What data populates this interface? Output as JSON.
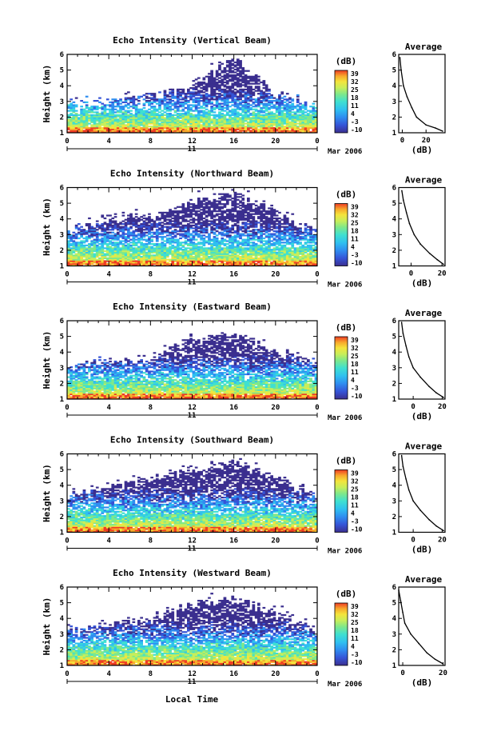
{
  "figure": {
    "panels": [
      {
        "title": "Echo Intensity (Vertical Beam)"
      },
      {
        "title": "Echo Intensity (Northward Beam)"
      },
      {
        "title": "Echo Intensity (Eastward Beam)"
      },
      {
        "title": "Echo Intensity (Southward Beam)"
      },
      {
        "title": "Echo Intensity (Westward Beam)"
      }
    ],
    "ylabel": "Height (km)",
    "colorbar_label": "(dB)",
    "colorbar_ticks": [
      "39",
      "32",
      "25",
      "18",
      "11",
      "4",
      "-3",
      "-10"
    ],
    "x_ticks": [
      "0",
      "4",
      "8",
      "12",
      "16",
      "20",
      "0"
    ],
    "day_label": "11",
    "date_label": "Mar 2006",
    "xlabel": "Local Time",
    "profile_title": "Average",
    "profile_xlabel": "(dB)",
    "y_ticks": [
      "1",
      "2",
      "3",
      "4",
      "5",
      "6"
    ],
    "colors": {
      "scale": [
        "#3b2f8f",
        "#3553d6",
        "#2f8ef0",
        "#2fc0f0",
        "#3fe0d0",
        "#7fe88a",
        "#c8ee5a",
        "#f4e43c",
        "#f8a82c",
        "#ee3c24"
      ]
    }
  },
  "chart_data": [
    {
      "type": "heatmap",
      "title": "Echo Intensity (Vertical Beam)",
      "xlabel": "",
      "ylabel": "Height (km)",
      "xlim": [
        0,
        24
      ],
      "ylim": [
        1,
        6
      ],
      "zlim": [
        -10,
        39
      ],
      "zlabel": "(dB)",
      "echo_top_km": [
        [
          0,
          2.7
        ],
        [
          4,
          2.9
        ],
        [
          8,
          3.3
        ],
        [
          12,
          3.8
        ],
        [
          16,
          5.8
        ],
        [
          20,
          3.3
        ],
        [
          24,
          2.6
        ]
      ]
    },
    {
      "type": "line",
      "title": "Average",
      "xlabel": "(dB)",
      "ylabel": "",
      "xlim": [
        -3,
        36
      ],
      "ylim": [
        1,
        6
      ],
      "x_ticks": [
        0,
        20
      ],
      "x": [
        34,
        28,
        20,
        12,
        8,
        4,
        1,
        -1,
        -2
      ],
      "y": [
        1.1,
        1.3,
        1.5,
        2.0,
        2.6,
        3.3,
        4.0,
        5.0,
        5.8
      ]
    },
    {
      "type": "heatmap",
      "title": "Echo Intensity (Northward Beam)",
      "xlabel": "",
      "ylabel": "Height (km)",
      "xlim": [
        0,
        24
      ],
      "ylim": [
        1,
        6
      ],
      "zlim": [
        -10,
        39
      ],
      "zlabel": "(dB)",
      "echo_top_km": [
        [
          0,
          3.2
        ],
        [
          4,
          4.0
        ],
        [
          8,
          4.2
        ],
        [
          12,
          5.0
        ],
        [
          16,
          5.6
        ],
        [
          20,
          4.5
        ],
        [
          24,
          3.0
        ]
      ]
    },
    {
      "type": "line",
      "title": "Average",
      "xlabel": "(dB)",
      "ylabel": "",
      "xlim": [
        -8,
        22
      ],
      "ylim": [
        1,
        6
      ],
      "x_ticks": [
        0,
        20
      ],
      "x": [
        21,
        17,
        12,
        6,
        2,
        -1,
        -3,
        -5,
        -6
      ],
      "y": [
        1.1,
        1.4,
        1.8,
        2.4,
        3.0,
        3.7,
        4.4,
        5.2,
        5.8
      ]
    },
    {
      "type": "heatmap",
      "title": "Echo Intensity (Eastward Beam)",
      "xlabel": "",
      "ylabel": "Height (km)",
      "xlim": [
        0,
        24
      ],
      "ylim": [
        1,
        6
      ],
      "zlim": [
        -10,
        39
      ],
      "zlabel": "(dB)",
      "echo_top_km": [
        [
          0,
          3.1
        ],
        [
          4,
          3.3
        ],
        [
          8,
          3.5
        ],
        [
          12,
          4.8
        ],
        [
          16,
          5.0
        ],
        [
          20,
          4.0
        ],
        [
          24,
          3.1
        ]
      ]
    },
    {
      "type": "line",
      "title": "Average",
      "xlabel": "(dB)",
      "ylabel": "",
      "xlim": [
        -10,
        22
      ],
      "ylim": [
        1,
        6
      ],
      "x_ticks": [
        0,
        20
      ],
      "x": [
        21,
        16,
        11,
        5,
        0,
        -3,
        -5,
        -7,
        -8
      ],
      "y": [
        1.1,
        1.4,
        1.8,
        2.4,
        3.0,
        3.7,
        4.4,
        5.2,
        5.9
      ]
    },
    {
      "type": "heatmap",
      "title": "Echo Intensity (Southward Beam)",
      "xlabel": "",
      "ylabel": "Height (km)",
      "xlim": [
        0,
        24
      ],
      "ylim": [
        1,
        6
      ],
      "zlim": [
        -10,
        39
      ],
      "zlabel": "(dB)",
      "echo_top_km": [
        [
          0,
          3.3
        ],
        [
          4,
          3.8
        ],
        [
          8,
          4.4
        ],
        [
          12,
          4.8
        ],
        [
          16,
          5.4
        ],
        [
          20,
          4.4
        ],
        [
          24,
          3.3
        ]
      ]
    },
    {
      "type": "line",
      "title": "Average",
      "xlabel": "(dB)",
      "ylabel": "",
      "xlim": [
        -10,
        22
      ],
      "ylim": [
        1,
        6
      ],
      "x_ticks": [
        0,
        20
      ],
      "x": [
        21,
        16,
        11,
        5,
        0,
        -3,
        -5,
        -7,
        -8
      ],
      "y": [
        1.1,
        1.4,
        1.8,
        2.4,
        3.0,
        3.7,
        4.4,
        5.2,
        5.9
      ]
    },
    {
      "type": "heatmap",
      "title": "Echo Intensity (Westward Beam)",
      "xlabel": "",
      "ylabel": "Height (km)",
      "xlim": [
        0,
        24
      ],
      "ylim": [
        1,
        6
      ],
      "zlim": [
        -10,
        39
      ],
      "zlabel": "(dB)",
      "echo_top_km": [
        [
          0,
          3.1
        ],
        [
          4,
          3.6
        ],
        [
          8,
          3.8
        ],
        [
          12,
          4.9
        ],
        [
          16,
          5.2
        ],
        [
          20,
          4.3
        ],
        [
          24,
          3.1
        ]
      ]
    },
    {
      "type": "line",
      "title": "Average",
      "xlabel": "(dB)",
      "ylabel": "",
      "xlim": [
        -2,
        21
      ],
      "ylim": [
        1,
        6
      ],
      "x_ticks": [
        0,
        20
      ],
      "x": [
        20,
        16,
        12,
        8,
        4,
        1,
        0,
        -1,
        -2
      ],
      "y": [
        1.1,
        1.4,
        1.8,
        2.4,
        3.0,
        3.7,
        4.4,
        5.1,
        5.8
      ]
    }
  ]
}
